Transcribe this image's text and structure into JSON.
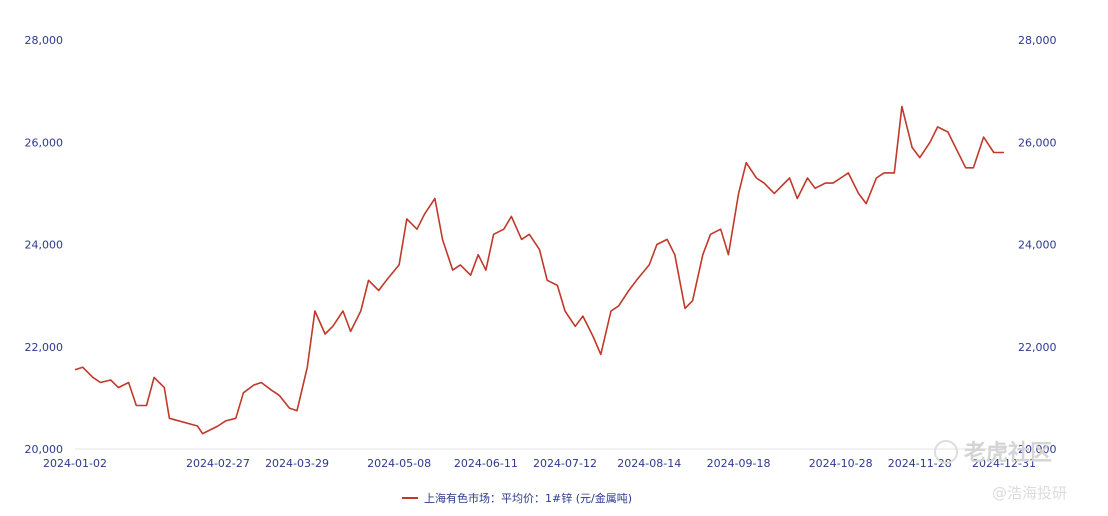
{
  "chart_data": {
    "type": "line",
    "title": "",
    "xlabel": "",
    "ylabel": "",
    "ylim": [
      20000,
      28000
    ],
    "y_ticks": [
      "20,000",
      "22,000",
      "24,000",
      "26,000",
      "28,000"
    ],
    "y_ticks_right": [
      "20,000",
      "22,000",
      "24,000",
      "26,000",
      "28,000"
    ],
    "x_ticks": [
      "2024-01-02",
      "2024-02-27",
      "2024-03-29",
      "2024-05-08",
      "2024-06-11",
      "2024-07-12",
      "2024-08-14",
      "2024-09-18",
      "2024-10-28",
      "2024-11-28",
      "2024-12-31"
    ],
    "grid": false,
    "legend_position": "bottom-center",
    "series": [
      {
        "name": "上海有色市场：平均价：1#锌 (元/金属吨)",
        "color": "#c0392b",
        "x": [
          "2024-01-02",
          "2024-01-05",
          "2024-01-09",
          "2024-01-12",
          "2024-01-16",
          "2024-01-19",
          "2024-01-23",
          "2024-01-26",
          "2024-01-30",
          "2024-02-02",
          "2024-02-06",
          "2024-02-08",
          "2024-02-19",
          "2024-02-21",
          "2024-02-23",
          "2024-02-27",
          "2024-03-01",
          "2024-03-05",
          "2024-03-08",
          "2024-03-12",
          "2024-03-15",
          "2024-03-19",
          "2024-03-22",
          "2024-03-26",
          "2024-03-29",
          "2024-04-02",
          "2024-04-05",
          "2024-04-09",
          "2024-04-12",
          "2024-04-16",
          "2024-04-19",
          "2024-04-23",
          "2024-04-26",
          "2024-04-30",
          "2024-05-03",
          "2024-05-08",
          "2024-05-11",
          "2024-05-15",
          "2024-05-18",
          "2024-05-22",
          "2024-05-25",
          "2024-05-29",
          "2024-06-01",
          "2024-06-05",
          "2024-06-08",
          "2024-06-11",
          "2024-06-14",
          "2024-06-18",
          "2024-06-21",
          "2024-06-25",
          "2024-06-28",
          "2024-07-02",
          "2024-07-05",
          "2024-07-09",
          "2024-07-12",
          "2024-07-16",
          "2024-07-19",
          "2024-07-23",
          "2024-07-26",
          "2024-07-30",
          "2024-08-02",
          "2024-08-06",
          "2024-08-09",
          "2024-08-14",
          "2024-08-17",
          "2024-08-21",
          "2024-08-24",
          "2024-08-28",
          "2024-08-31",
          "2024-09-04",
          "2024-09-07",
          "2024-09-11",
          "2024-09-14",
          "2024-09-18",
          "2024-09-21",
          "2024-09-25",
          "2024-09-28",
          "2024-10-02",
          "2024-10-08",
          "2024-10-11",
          "2024-10-15",
          "2024-10-18",
          "2024-10-22",
          "2024-10-25",
          "2024-10-28",
          "2024-10-31",
          "2024-11-04",
          "2024-11-07",
          "2024-11-11",
          "2024-11-14",
          "2024-11-18",
          "2024-11-21",
          "2024-11-25",
          "2024-11-28",
          "2024-12-02",
          "2024-12-05",
          "2024-12-09",
          "2024-12-12",
          "2024-12-16",
          "2024-12-19",
          "2024-12-23",
          "2024-12-27",
          "2024-12-31"
        ],
        "values": [
          21550,
          21600,
          21400,
          21300,
          21350,
          21200,
          21300,
          20850,
          20850,
          21400,
          21200,
          20600,
          20450,
          20300,
          20350,
          20450,
          20550,
          20600,
          21100,
          21250,
          21300,
          21150,
          21050,
          20800,
          20750,
          21600,
          22700,
          22250,
          22400,
          22700,
          22300,
          22700,
          23300,
          23100,
          23300,
          23600,
          24500,
          24300,
          24600,
          24900,
          24100,
          23500,
          23600,
          23400,
          23800,
          23500,
          24200,
          24300,
          24550,
          24100,
          24200,
          23900,
          23300,
          23200,
          22700,
          22400,
          22600,
          22200,
          21850,
          22700,
          22800,
          23100,
          23300,
          23600,
          24000,
          24100,
          23800,
          22750,
          22900,
          23800,
          24200,
          24300,
          23800,
          25000,
          25600,
          25300,
          25200,
          25000,
          25300,
          24900,
          25300,
          25100,
          25200,
          25200,
          25300,
          25400,
          25000,
          24800,
          25300,
          25400,
          25400,
          26700,
          25900,
          25700,
          26000,
          26300,
          26200,
          25900,
          25500,
          25500,
          26100,
          25800,
          25800
        ]
      }
    ]
  },
  "legend": {
    "label": "上海有色市场：平均价：1#锌 (元/金属吨)"
  },
  "watermark": {
    "main": "老虎社区",
    "sub": "@浩海投研"
  }
}
